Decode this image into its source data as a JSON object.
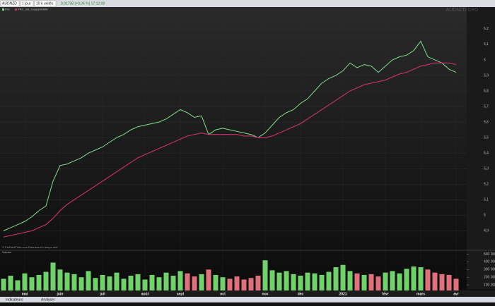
{
  "toolbar": {
    "symbol": "AUDNZD",
    "timeframe": "1 jour",
    "units": "10 k unités",
    "quote": "0,91798 (+0,04 %) 17:12:08"
  },
  "watermark": "AUDNZD CFD",
  "source": "© ProRealTime.com  Données en temps réel",
  "footer": {
    "tabs": [
      "Indicateurs",
      "Analyser"
    ]
  },
  "chart_data": [
    {
      "type": "line",
      "categories": [
        null,
        null,
        null,
        "mai",
        null,
        null,
        null,
        null,
        "juin",
        null,
        null,
        null,
        null,
        null,
        "juil",
        null,
        null,
        null,
        null,
        null,
        "août",
        null,
        null,
        null,
        null,
        "sept",
        null,
        null,
        null,
        null,
        null,
        "oct",
        null,
        null,
        null,
        null,
        null,
        "nov",
        null,
        null,
        null,
        null,
        "déc",
        null,
        null,
        null,
        null,
        null,
        "2021",
        null,
        null,
        null,
        null,
        null,
        "févr",
        null,
        null,
        null,
        null,
        "mars",
        null,
        null,
        null,
        null,
        "avr"
      ],
      "series": [
        {
          "name": "Prix",
          "color": "#7ee08a",
          "values": [
            4.9,
            4.92,
            4.94,
            4.96,
            4.99,
            5.03,
            5.06,
            5.22,
            5.32,
            5.33,
            5.35,
            5.37,
            5.4,
            5.42,
            5.44,
            5.47,
            5.5,
            5.52,
            5.55,
            5.57,
            5.58,
            5.59,
            5.6,
            5.62,
            5.65,
            5.68,
            5.66,
            5.63,
            5.64,
            5.52,
            5.55,
            5.56,
            5.55,
            5.54,
            5.53,
            5.52,
            5.5,
            5.53,
            5.58,
            5.63,
            5.66,
            5.68,
            5.72,
            5.75,
            5.8,
            5.85,
            5.88,
            5.9,
            5.93,
            5.98,
            5.95,
            5.97,
            5.96,
            5.92,
            5.96,
            6.0,
            6.02,
            6.03,
            6.06,
            6.12,
            6.02,
            6.0,
            5.98,
            5.94,
            5.92
          ]
        },
        {
          "name": "PRC_Ind_GuppyGMMA",
          "color": "#c0306a",
          "values": [
            4.86,
            4.87,
            4.88,
            4.89,
            4.9,
            4.92,
            4.94,
            4.98,
            5.03,
            5.07,
            5.1,
            5.13,
            5.16,
            5.19,
            5.22,
            5.25,
            5.28,
            5.31,
            5.34,
            5.37,
            5.39,
            5.41,
            5.43,
            5.45,
            5.47,
            5.49,
            5.51,
            5.52,
            5.53,
            5.52,
            5.52,
            5.52,
            5.52,
            5.52,
            5.51,
            5.51,
            5.5,
            5.5,
            5.51,
            5.53,
            5.55,
            5.57,
            5.59,
            5.62,
            5.65,
            5.68,
            5.71,
            5.74,
            5.77,
            5.8,
            5.82,
            5.84,
            5.85,
            5.86,
            5.87,
            5.89,
            5.91,
            5.92,
            5.94,
            5.96,
            5.97,
            5.98,
            5.98,
            5.98,
            5.97
          ]
        }
      ],
      "ylim": [
        4.82,
        6.34
      ],
      "yticks": [
        {
          "value": 4.9,
          "label": "4,9"
        },
        {
          "value": 5,
          "label": "5"
        },
        {
          "value": 5.1,
          "label": "5,1"
        },
        {
          "value": 5.2,
          "label": "5,2"
        },
        {
          "value": 5.3,
          "label": "5,3"
        },
        {
          "value": 5.4,
          "label": "5,4"
        },
        {
          "value": 5.5,
          "label": "5,5"
        },
        {
          "value": 5.6,
          "label": "5,6"
        },
        {
          "value": 5.7,
          "label": "5,7"
        },
        {
          "value": 5.8,
          "label": "5,8"
        },
        {
          "value": 5.9,
          "label": "5,9"
        },
        {
          "value": 6,
          "label": "6"
        },
        {
          "value": 6.1,
          "label": "6,1"
        },
        {
          "value": 6.2,
          "label": "6,2"
        }
      ],
      "grid": true
    },
    {
      "type": "bar",
      "title": "Volume",
      "up_color": "#6fd36a",
      "down_color": "#e0707a",
      "values": [
        180000,
        220000,
        160000,
        250000,
        200000,
        230000,
        270000,
        390000,
        300000,
        260000,
        240000,
        200000,
        280000,
        190000,
        230000,
        210000,
        260000,
        180000,
        220000,
        240000,
        170000,
        230000,
        200000,
        260000,
        220000,
        280000,
        250000,
        210000,
        240000,
        300000,
        230000,
        200000,
        180000,
        210000,
        170000,
        190000,
        220000,
        420000,
        290000,
        260000,
        280000,
        240000,
        220000,
        260000,
        250000,
        230000,
        270000,
        330000,
        360000,
        280000,
        250000,
        230000,
        240000,
        210000,
        260000,
        280000,
        250000,
        310000,
        340000,
        330000,
        300000,
        260000,
        240000,
        230000,
        180000
      ],
      "ylim": [
        0,
        550000
      ],
      "yticks": [
        {
          "value": 100000,
          "label": "100 000"
        },
        {
          "value": 200000,
          "label": "200 000"
        },
        {
          "value": 300000,
          "label": "300 000"
        },
        {
          "value": 400000,
          "label": "400 000"
        },
        {
          "value": 500000,
          "label": "500 000"
        }
      ]
    }
  ]
}
